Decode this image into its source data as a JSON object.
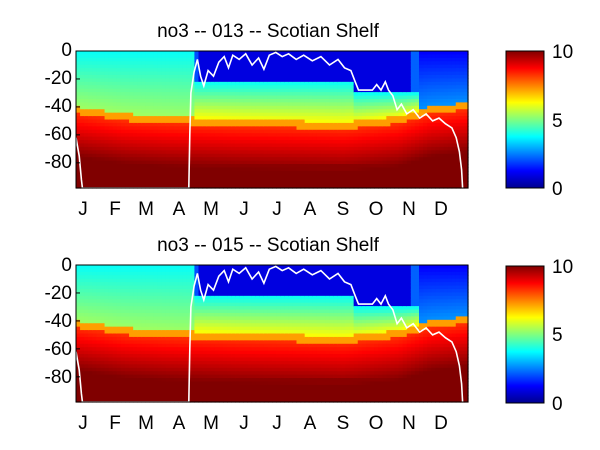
{
  "chart_data": [
    {
      "type": "heatmap",
      "title": "no3 -- 013 -- Scotian Shelf",
      "xlabel": "",
      "ylabel": "",
      "x_categories": [
        "J",
        "F",
        "M",
        "A",
        "M",
        "J",
        "J",
        "A",
        "S",
        "O",
        "N",
        "D"
      ],
      "y_ticks": [
        0,
        -20,
        -40,
        -60,
        -80
      ],
      "ylim": [
        -98,
        0
      ],
      "xlim": [
        0,
        365
      ],
      "colorbar": {
        "ticks": [
          0,
          5,
          10
        ],
        "range": [
          0,
          10
        ],
        "colormap": "jet"
      },
      "nutricline_depth_m": [
        {
          "day": 0,
          "depth": 43
        },
        {
          "day": 45,
          "depth": 48
        },
        {
          "day": 85,
          "depth": 50
        },
        {
          "day": 150,
          "depth": 52
        },
        {
          "day": 250,
          "depth": 54
        },
        {
          "day": 300,
          "depth": 50
        },
        {
          "day": 330,
          "depth": 43
        },
        {
          "day": 365,
          "depth": 40
        }
      ],
      "surface_overlay_line": [
        {
          "day": 0,
          "depth": -62
        },
        {
          "day": 3,
          "depth": -75
        },
        {
          "day": 5,
          "depth": -92
        },
        {
          "day": 6,
          "depth": -98
        },
        {
          "day": 105,
          "depth": -98
        },
        {
          "day": 106,
          "depth": -60
        },
        {
          "day": 107,
          "depth": -30
        },
        {
          "day": 110,
          "depth": -15
        },
        {
          "day": 113,
          "depth": -6
        },
        {
          "day": 116,
          "depth": -18
        },
        {
          "day": 119,
          "depth": -25
        },
        {
          "day": 123,
          "depth": -14
        },
        {
          "day": 128,
          "depth": -18
        },
        {
          "day": 133,
          "depth": -8
        },
        {
          "day": 138,
          "depth": -4
        },
        {
          "day": 142,
          "depth": -12
        },
        {
          "day": 146,
          "depth": -3
        },
        {
          "day": 152,
          "depth": -6
        },
        {
          "day": 158,
          "depth": -2
        },
        {
          "day": 164,
          "depth": -10
        },
        {
          "day": 170,
          "depth": -5
        },
        {
          "day": 175,
          "depth": -13
        },
        {
          "day": 180,
          "depth": -3
        },
        {
          "day": 186,
          "depth": -1
        },
        {
          "day": 192,
          "depth": -4
        },
        {
          "day": 198,
          "depth": -2
        },
        {
          "day": 205,
          "depth": -6
        },
        {
          "day": 212,
          "depth": -3
        },
        {
          "day": 220,
          "depth": -7
        },
        {
          "day": 228,
          "depth": -4
        },
        {
          "day": 236,
          "depth": -10
        },
        {
          "day": 244,
          "depth": -6
        },
        {
          "day": 250,
          "depth": -12
        },
        {
          "day": 256,
          "depth": -14
        },
        {
          "day": 260,
          "depth": -22
        },
        {
          "day": 263,
          "depth": -28
        },
        {
          "day": 276,
          "depth": -28
        },
        {
          "day": 280,
          "depth": -24
        },
        {
          "day": 284,
          "depth": -28
        },
        {
          "day": 288,
          "depth": -22
        },
        {
          "day": 291,
          "depth": -28
        },
        {
          "day": 295,
          "depth": -32
        },
        {
          "day": 299,
          "depth": -42
        },
        {
          "day": 303,
          "depth": -38
        },
        {
          "day": 308,
          "depth": -45
        },
        {
          "day": 314,
          "depth": -42
        },
        {
          "day": 320,
          "depth": -48
        },
        {
          "day": 326,
          "depth": -45
        },
        {
          "day": 332,
          "depth": -50
        },
        {
          "day": 338,
          "depth": -48
        },
        {
          "day": 344,
          "depth": -52
        },
        {
          "day": 350,
          "depth": -55
        },
        {
          "day": 354,
          "depth": -62
        },
        {
          "day": 357,
          "depth": -72
        },
        {
          "day": 359,
          "depth": -85
        },
        {
          "day": 360,
          "depth": -98
        }
      ]
    },
    {
      "type": "heatmap",
      "title": "no3 -- 015 -- Scotian Shelf",
      "xlabel": "",
      "ylabel": "",
      "x_categories": [
        "J",
        "F",
        "M",
        "A",
        "M",
        "J",
        "J",
        "A",
        "S",
        "O",
        "N",
        "D"
      ],
      "y_ticks": [
        0,
        -20,
        -40,
        -60,
        -80
      ],
      "ylim": [
        -98,
        0
      ],
      "xlim": [
        0,
        365
      ],
      "colorbar": {
        "ticks": [
          0,
          5,
          10
        ],
        "range": [
          0,
          10
        ],
        "colormap": "jet"
      },
      "nutricline_depth_m": [
        {
          "day": 0,
          "depth": 43
        },
        {
          "day": 45,
          "depth": 48
        },
        {
          "day": 85,
          "depth": 50
        },
        {
          "day": 150,
          "depth": 52
        },
        {
          "day": 250,
          "depth": 54
        },
        {
          "day": 300,
          "depth": 50
        },
        {
          "day": 330,
          "depth": 43
        },
        {
          "day": 365,
          "depth": 40
        }
      ],
      "surface_overlay_line": [
        {
          "day": 0,
          "depth": -62
        },
        {
          "day": 3,
          "depth": -75
        },
        {
          "day": 5,
          "depth": -92
        },
        {
          "day": 6,
          "depth": -98
        },
        {
          "day": 105,
          "depth": -98
        },
        {
          "day": 106,
          "depth": -60
        },
        {
          "day": 107,
          "depth": -30
        },
        {
          "day": 110,
          "depth": -15
        },
        {
          "day": 113,
          "depth": -6
        },
        {
          "day": 116,
          "depth": -18
        },
        {
          "day": 119,
          "depth": -25
        },
        {
          "day": 123,
          "depth": -14
        },
        {
          "day": 128,
          "depth": -18
        },
        {
          "day": 133,
          "depth": -8
        },
        {
          "day": 138,
          "depth": -4
        },
        {
          "day": 142,
          "depth": -12
        },
        {
          "day": 146,
          "depth": -3
        },
        {
          "day": 152,
          "depth": -6
        },
        {
          "day": 158,
          "depth": -2
        },
        {
          "day": 164,
          "depth": -10
        },
        {
          "day": 170,
          "depth": -5
        },
        {
          "day": 175,
          "depth": -13
        },
        {
          "day": 180,
          "depth": -3
        },
        {
          "day": 186,
          "depth": -1
        },
        {
          "day": 192,
          "depth": -4
        },
        {
          "day": 198,
          "depth": -2
        },
        {
          "day": 205,
          "depth": -6
        },
        {
          "day": 212,
          "depth": -3
        },
        {
          "day": 220,
          "depth": -7
        },
        {
          "day": 228,
          "depth": -4
        },
        {
          "day": 236,
          "depth": -10
        },
        {
          "day": 244,
          "depth": -6
        },
        {
          "day": 250,
          "depth": -12
        },
        {
          "day": 256,
          "depth": -14
        },
        {
          "day": 260,
          "depth": -22
        },
        {
          "day": 263,
          "depth": -28
        },
        {
          "day": 276,
          "depth": -28
        },
        {
          "day": 280,
          "depth": -24
        },
        {
          "day": 284,
          "depth": -28
        },
        {
          "day": 288,
          "depth": -22
        },
        {
          "day": 291,
          "depth": -28
        },
        {
          "day": 295,
          "depth": -32
        },
        {
          "day": 299,
          "depth": -42
        },
        {
          "day": 303,
          "depth": -38
        },
        {
          "day": 308,
          "depth": -45
        },
        {
          "day": 314,
          "depth": -42
        },
        {
          "day": 320,
          "depth": -48
        },
        {
          "day": 326,
          "depth": -45
        },
        {
          "day": 332,
          "depth": -50
        },
        {
          "day": 338,
          "depth": -48
        },
        {
          "day": 344,
          "depth": -52
        },
        {
          "day": 350,
          "depth": -55
        },
        {
          "day": 354,
          "depth": -62
        },
        {
          "day": 357,
          "depth": -72
        },
        {
          "day": 359,
          "depth": -85
        },
        {
          "day": 360,
          "depth": -98
        }
      ]
    }
  ]
}
